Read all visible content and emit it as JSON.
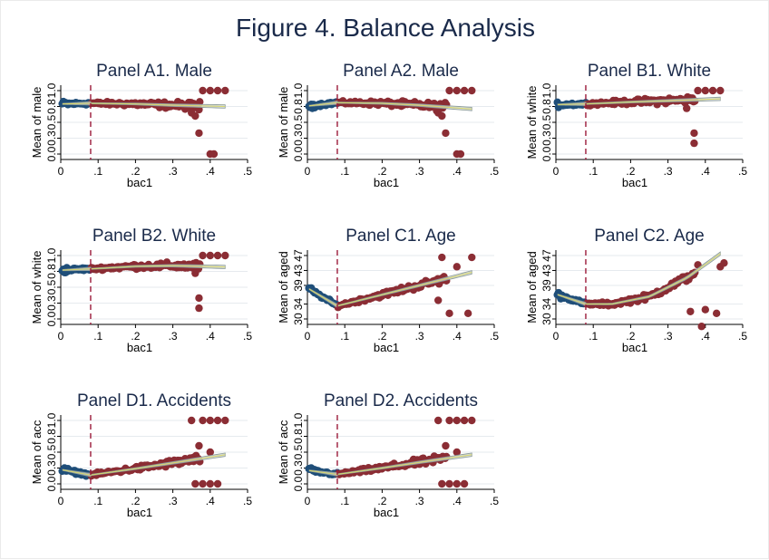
{
  "figure": {
    "title": "Figure 4. Balance Analysis"
  },
  "colors": {
    "left": "#1f4e79",
    "right": "#8b2d34",
    "cutoff": "#9b1b3a",
    "fit_fill": "#c8d0d0",
    "fit_line": "#8a9a96",
    "grid": "#e6eaee"
  },
  "chart_data": [
    {
      "type": "scatter",
      "title": "Panel A1. Male",
      "xlabel": "bac1",
      "ylabel": "Mean of male",
      "xlim": [
        0,
        0.5
      ],
      "ylim": [
        0,
        1
      ],
      "cutoff": 0.08,
      "xticks": [
        "0",
        ".1",
        ".2",
        ".3",
        ".4",
        ".5"
      ],
      "yticks": [
        "0.0",
        "0.3",
        "0.5",
        "0.8",
        "1.0"
      ],
      "ytick_values": [
        0,
        0.25,
        0.5,
        0.75,
        1.0
      ],
      "left_trend": [
        [
          0.005,
          0.79
        ],
        [
          0.08,
          0.8
        ]
      ],
      "right_trend": [
        [
          0.08,
          0.8
        ],
        [
          0.2,
          0.79
        ],
        [
          0.3,
          0.77
        ],
        [
          0.44,
          0.75
        ]
      ],
      "outliers": [
        [
          0.37,
          0.33
        ],
        [
          0.38,
          1.0
        ],
        [
          0.4,
          1.0
        ],
        [
          0.42,
          1.0
        ],
        [
          0.44,
          1.0
        ],
        [
          0.4,
          0.0
        ],
        [
          0.41,
          0.0
        ],
        [
          0.35,
          0.65
        ],
        [
          0.36,
          0.6
        ],
        [
          0.37,
          0.7
        ]
      ]
    },
    {
      "type": "scatter",
      "title": "Panel A2. Male",
      "xlabel": "bac1",
      "ylabel": "Mean of male",
      "xlim": [
        0,
        0.5
      ],
      "ylim": [
        0,
        1
      ],
      "cutoff": 0.08,
      "xticks": [
        "0",
        ".1",
        ".2",
        ".3",
        ".4",
        ".5"
      ],
      "yticks": [
        "0.0",
        "0.3",
        "0.5",
        "0.8",
        "1.0"
      ],
      "ytick_values": [
        0,
        0.25,
        0.5,
        0.75,
        1.0
      ],
      "left_trend": [
        [
          0.005,
          0.76
        ],
        [
          0.08,
          0.81
        ]
      ],
      "right_trend": [
        [
          0.08,
          0.81
        ],
        [
          0.2,
          0.8
        ],
        [
          0.3,
          0.77
        ],
        [
          0.44,
          0.71
        ]
      ],
      "outliers": [
        [
          0.37,
          0.33
        ],
        [
          0.38,
          1.0
        ],
        [
          0.4,
          1.0
        ],
        [
          0.42,
          1.0
        ],
        [
          0.44,
          1.0
        ],
        [
          0.4,
          0.0
        ],
        [
          0.41,
          0.0
        ],
        [
          0.35,
          0.65
        ],
        [
          0.36,
          0.6
        ]
      ]
    },
    {
      "type": "scatter",
      "title": "Panel B1. White",
      "xlabel": "bac1",
      "ylabel": "Mean of white",
      "xlim": [
        0,
        0.5
      ],
      "ylim": [
        0,
        1
      ],
      "cutoff": 0.08,
      "xticks": [
        "0",
        ".1",
        ".2",
        ".3",
        ".4",
        ".5"
      ],
      "yticks": [
        "0.0",
        "0.3",
        "0.5",
        "0.8",
        "1.0"
      ],
      "ytick_values": [
        0,
        0.25,
        0.5,
        0.75,
        1.0
      ],
      "left_trend": [
        [
          0.005,
          0.78
        ],
        [
          0.08,
          0.79
        ]
      ],
      "right_trend": [
        [
          0.08,
          0.79
        ],
        [
          0.2,
          0.82
        ],
        [
          0.3,
          0.84
        ],
        [
          0.44,
          0.87
        ]
      ],
      "outliers": [
        [
          0.37,
          0.33
        ],
        [
          0.37,
          0.17
        ],
        [
          0.38,
          1.0
        ],
        [
          0.4,
          1.0
        ],
        [
          0.42,
          1.0
        ],
        [
          0.44,
          1.0
        ],
        [
          0.35,
          0.72
        ]
      ]
    },
    {
      "type": "scatter",
      "title": "Panel B2. White",
      "xlabel": "bac1",
      "ylabel": "Mean of white",
      "xlim": [
        0,
        0.5
      ],
      "ylim": [
        0,
        1
      ],
      "cutoff": 0.08,
      "xticks": [
        "0",
        ".1",
        ".2",
        ".3",
        ".4",
        ".5"
      ],
      "yticks": [
        "0.0",
        "0.3",
        "0.5",
        "0.8",
        "1.0"
      ],
      "ytick_values": [
        0,
        0.25,
        0.5,
        0.75,
        1.0
      ],
      "left_trend": [
        [
          0.005,
          0.77
        ],
        [
          0.08,
          0.79
        ]
      ],
      "right_trend": [
        [
          0.08,
          0.79
        ],
        [
          0.2,
          0.83
        ],
        [
          0.3,
          0.84
        ],
        [
          0.44,
          0.82
        ]
      ],
      "outliers": [
        [
          0.37,
          0.33
        ],
        [
          0.37,
          0.17
        ],
        [
          0.38,
          1.0
        ],
        [
          0.4,
          1.0
        ],
        [
          0.42,
          1.0
        ],
        [
          0.44,
          1.0
        ],
        [
          0.36,
          0.72
        ]
      ]
    },
    {
      "type": "scatter",
      "title": "Panel C1. Age",
      "xlabel": "bac1",
      "ylabel": "Mean of aged",
      "xlim": [
        0,
        0.5
      ],
      "ylim": [
        30,
        47
      ],
      "cutoff": 0.08,
      "xticks": [
        "0",
        ".1",
        ".2",
        ".3",
        ".4",
        ".5"
      ],
      "yticks": [
        "30",
        "34",
        "39",
        "43",
        "47"
      ],
      "ytick_values": [
        30,
        34,
        39,
        43,
        47
      ],
      "left_trend": [
        [
          0.005,
          38.0
        ],
        [
          0.08,
          33.5
        ]
      ],
      "right_trend": [
        [
          0.08,
          33.5
        ],
        [
          0.2,
          36.5
        ],
        [
          0.3,
          39.0
        ],
        [
          0.44,
          42.5
        ]
      ],
      "outliers": [
        [
          0.36,
          46.5
        ],
        [
          0.44,
          46.5
        ],
        [
          0.38,
          31.5
        ],
        [
          0.43,
          31.5
        ],
        [
          0.4,
          44.0
        ],
        [
          0.35,
          35.0
        ]
      ]
    },
    {
      "type": "scatter",
      "title": "Panel C2. Age",
      "xlabel": "bac1",
      "ylabel": "Mean of aged",
      "xlim": [
        0,
        0.5
      ],
      "ylim": [
        30,
        47
      ],
      "cutoff": 0.08,
      "xticks": [
        "0",
        ".1",
        ".2",
        ".3",
        ".4",
        ".5"
      ],
      "yticks": [
        "30",
        "34",
        "39",
        "43",
        "47"
      ],
      "ytick_values": [
        30,
        34,
        39,
        43,
        47
      ],
      "left_trend": [
        [
          0.005,
          36.5
        ],
        [
          0.08,
          34.0
        ]
      ],
      "right_trend": [
        [
          0.08,
          34.0
        ],
        [
          0.15,
          34.0
        ],
        [
          0.25,
          36.0
        ],
        [
          0.35,
          41.0
        ],
        [
          0.44,
          47.5
        ]
      ],
      "outliers": [
        [
          0.38,
          44.5
        ],
        [
          0.44,
          44.0
        ],
        [
          0.45,
          45.0
        ],
        [
          0.36,
          32.0
        ],
        [
          0.43,
          31.5
        ],
        [
          0.39,
          28.0
        ],
        [
          0.4,
          32.5
        ]
      ]
    },
    {
      "type": "scatter",
      "title": "Panel D1. Accidents",
      "xlabel": "bac1",
      "ylabel": "Mean of acc",
      "xlim": [
        0,
        0.5
      ],
      "ylim": [
        0,
        1
      ],
      "cutoff": 0.08,
      "xticks": [
        "0",
        ".1",
        ".2",
        ".3",
        ".4",
        ".5"
      ],
      "yticks": [
        "0.0",
        "0.3",
        "0.5",
        "0.8",
        "1.0"
      ],
      "ytick_values": [
        0,
        0.25,
        0.5,
        0.75,
        1.0
      ],
      "left_trend": [
        [
          0.005,
          0.22
        ],
        [
          0.08,
          0.14
        ]
      ],
      "right_trend": [
        [
          0.08,
          0.14
        ],
        [
          0.2,
          0.24
        ],
        [
          0.3,
          0.33
        ],
        [
          0.44,
          0.46
        ]
      ],
      "outliers": [
        [
          0.35,
          1.0
        ],
        [
          0.38,
          1.0
        ],
        [
          0.4,
          1.0
        ],
        [
          0.42,
          1.0
        ],
        [
          0.44,
          1.0
        ],
        [
          0.36,
          0.0
        ],
        [
          0.38,
          0.0
        ],
        [
          0.4,
          0.0
        ],
        [
          0.42,
          0.0
        ],
        [
          0.37,
          0.6
        ],
        [
          0.4,
          0.5
        ]
      ]
    },
    {
      "type": "scatter",
      "title": "Panel D2. Accidents",
      "xlabel": "bac1",
      "ylabel": "Mean of acc",
      "xlim": [
        0,
        0.5
      ],
      "ylim": [
        0,
        1
      ],
      "cutoff": 0.08,
      "xticks": [
        "0",
        ".1",
        ".2",
        ".3",
        ".4",
        ".5"
      ],
      "yticks": [
        "0.0",
        "0.3",
        "0.5",
        "0.8",
        "1.0"
      ],
      "ytick_values": [
        0,
        0.25,
        0.5,
        0.75,
        1.0
      ],
      "left_trend": [
        [
          0.005,
          0.21
        ],
        [
          0.08,
          0.15
        ]
      ],
      "right_trend": [
        [
          0.08,
          0.15
        ],
        [
          0.2,
          0.25
        ],
        [
          0.3,
          0.34
        ],
        [
          0.44,
          0.46
        ]
      ],
      "outliers": [
        [
          0.35,
          1.0
        ],
        [
          0.38,
          1.0
        ],
        [
          0.4,
          1.0
        ],
        [
          0.42,
          1.0
        ],
        [
          0.44,
          1.0
        ],
        [
          0.36,
          0.0
        ],
        [
          0.38,
          0.0
        ],
        [
          0.4,
          0.0
        ],
        [
          0.42,
          0.0
        ],
        [
          0.37,
          0.6
        ],
        [
          0.4,
          0.5
        ]
      ]
    }
  ]
}
